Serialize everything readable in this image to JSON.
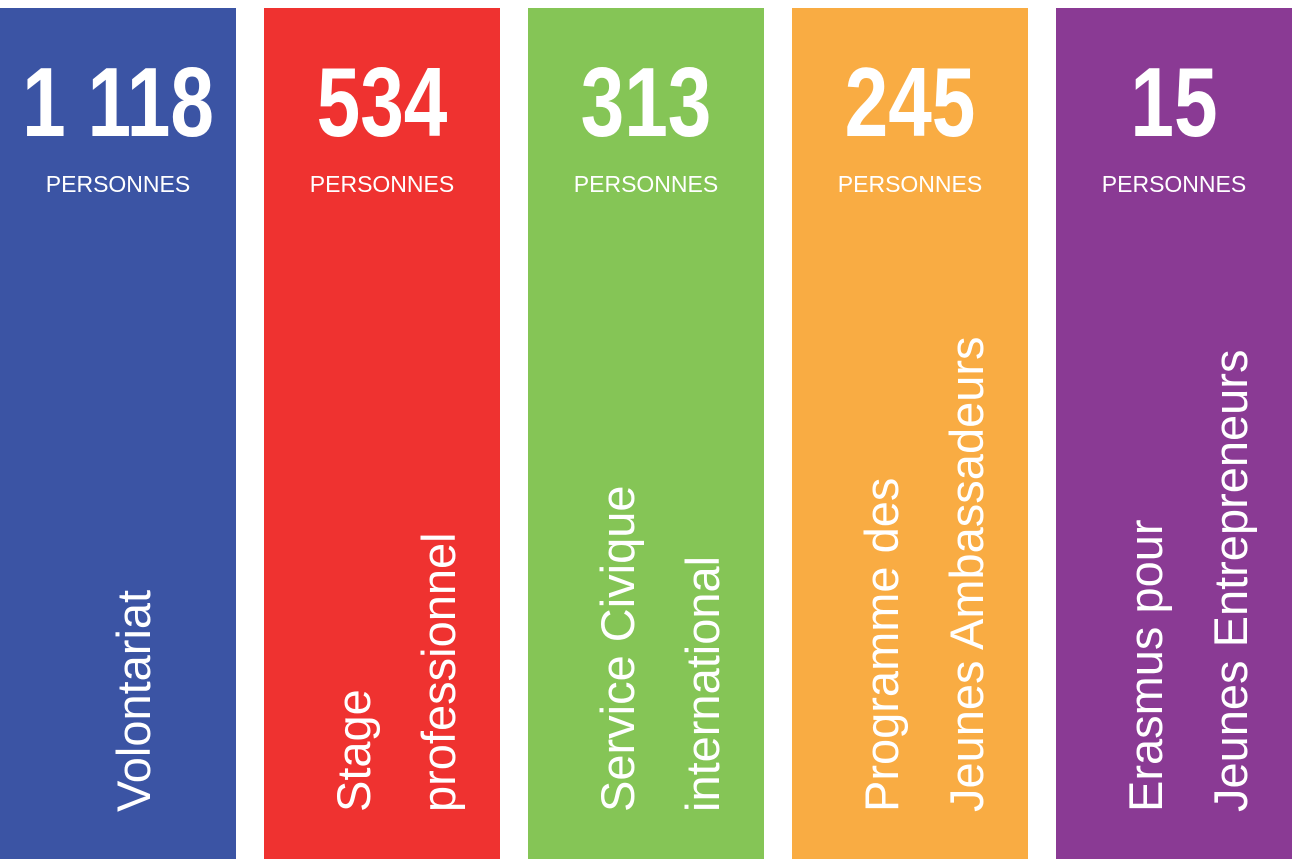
{
  "columns": [
    {
      "number": "1 118",
      "unit": "PERSONNES",
      "label": [
        "Volontariat"
      ],
      "color": "#3b54a4"
    },
    {
      "number": "534",
      "unit": "PERSONNES",
      "label": [
        "Stage",
        "professionnel"
      ],
      "color": "#ef3230"
    },
    {
      "number": "313",
      "unit": "PERSONNES",
      "label": [
        "Service Civique",
        "international"
      ],
      "color": "#85c556"
    },
    {
      "number": "245",
      "unit": "PERSONNES",
      "label": [
        "Programme des",
        "Jeunes Ambassadeurs"
      ],
      "color": "#f9ac43"
    },
    {
      "number": "15",
      "unit": "PERSONNES",
      "label": [
        "Erasmus pour",
        "Jeunes Entrepreneurs"
      ],
      "color": "#8a3a94"
    }
  ]
}
